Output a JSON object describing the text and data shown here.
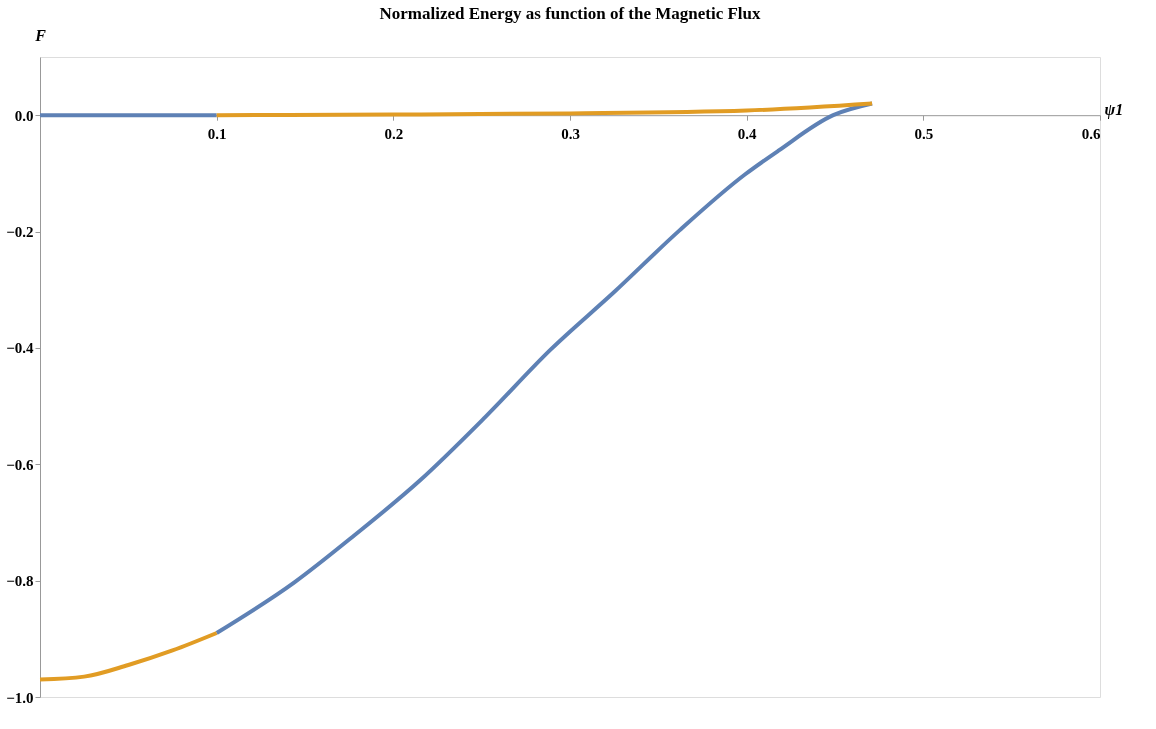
{
  "chart_data": {
    "type": "line",
    "title": "Normalized Energy as function of the Magnetic Flux",
    "xlabel": "ψ1",
    "ylabel": "F",
    "xlim": [
      0,
      0.6
    ],
    "xticks": [
      0.1,
      0.2,
      0.3,
      0.4,
      0.5,
      0.6
    ],
    "ylim": [
      -1.0,
      0.1
    ],
    "yticks": [
      {
        "value": -1.0,
        "label": "−1.0"
      },
      {
        "value": -0.8,
        "label": "−0.8"
      },
      {
        "value": -0.6,
        "label": "−0.6"
      },
      {
        "value": -0.4,
        "label": "−0.4"
      },
      {
        "value": -0.2,
        "label": "−0.2"
      },
      {
        "value": 0.0,
        "label": "0.0"
      }
    ],
    "grid": false,
    "legend": false,
    "marker": "none",
    "line_style": "solid",
    "series": [
      {
        "color": "#5e81b5",
        "x": [
          0,
          0.1
        ],
        "values": [
          0,
          0
        ]
      },
      {
        "color": "#5e81b5",
        "x": [
          0.1,
          0.144,
          0.178,
          0.215,
          0.252,
          0.289,
          0.325,
          0.362,
          0.399,
          0.418,
          0.449,
          0.471
        ],
        "values": [
          -0.89,
          -0.803,
          -0.722,
          -0.628,
          -0.519,
          -0.403,
          -0.304,
          -0.198,
          -0.102,
          -0.061,
          0,
          0.02
        ]
      },
      {
        "color": "#e19c24",
        "x": [
          0,
          0.025,
          0.05,
          0.075,
          0.1
        ],
        "values": [
          -0.97,
          -0.965,
          -0.945,
          -0.92,
          -0.89
        ]
      },
      {
        "color": "#e19c24",
        "x": [
          0.1,
          0.2,
          0.3,
          0.4,
          0.471
        ],
        "values": [
          0,
          0.001,
          0.003,
          0.008,
          0.02
        ]
      }
    ]
  }
}
